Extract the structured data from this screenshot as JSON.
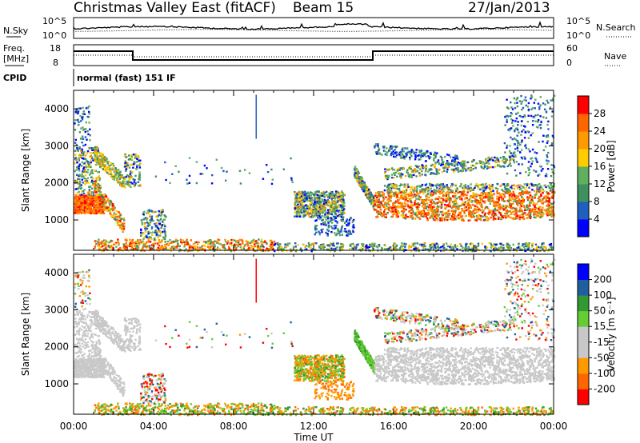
{
  "header": {
    "title": "Christmas Valley East (fitACF)",
    "beam": "Beam 15",
    "date": "27/Jan/2013"
  },
  "aux": {
    "nsky_label": "N.Sky",
    "nsearch_label": "N.Search",
    "nsky_ticks": [
      "10^5",
      "10^0"
    ],
    "freq_label_1": "Freq.",
    "freq_label_2": "[MHz]",
    "freq_ticks": [
      "18",
      "8"
    ],
    "nave_label": "Nave",
    "nave_ticks": [
      "60",
      "0"
    ],
    "cpid_label": "CPID",
    "cpid_value": "normal (fast) 151 IF"
  },
  "colors": {
    "power": [
      "#0000ff",
      "#1f5fbf",
      "#3f8f5f",
      "#5faf5f",
      "#ffcc00",
      "#ff9900",
      "#ff6600",
      "#ff0000"
    ],
    "velocity": [
      "#ff0000",
      "#ff6600",
      "#ff9900",
      "#c8c8c8",
      "#c8c8c8",
      "#66cc33",
      "#339933",
      "#1f5f9f",
      "#0000ff"
    ]
  },
  "chart_data": [
    {
      "type": "heatmap",
      "name": "power",
      "ylabel": "Slant Range [km]",
      "yticks": [
        1000,
        2000,
        3000,
        4000
      ],
      "ylim": [
        180,
        4500
      ],
      "colorbar_label": "Power [dB]",
      "colorbar_ticks": [
        "4",
        "8",
        "12",
        "16",
        "20",
        "24",
        "28"
      ]
    },
    {
      "type": "heatmap",
      "name": "velocity",
      "ylabel": "Slant Range [km]",
      "yticks": [
        1000,
        2000,
        3000,
        4000
      ],
      "ylim": [
        180,
        4500
      ],
      "xlabel": "Time UT",
      "xticks": [
        "00:00",
        "04:00",
        "08:00",
        "12:00",
        "16:00",
        "20:00",
        "00:00"
      ],
      "xlim_hours": [
        0,
        24
      ],
      "colorbar_label": "Velocity [m s⁻¹]",
      "colorbar_ticks": [
        "-200",
        "-100",
        "-50",
        "-15",
        "15",
        "50",
        "100",
        "200"
      ]
    }
  ]
}
